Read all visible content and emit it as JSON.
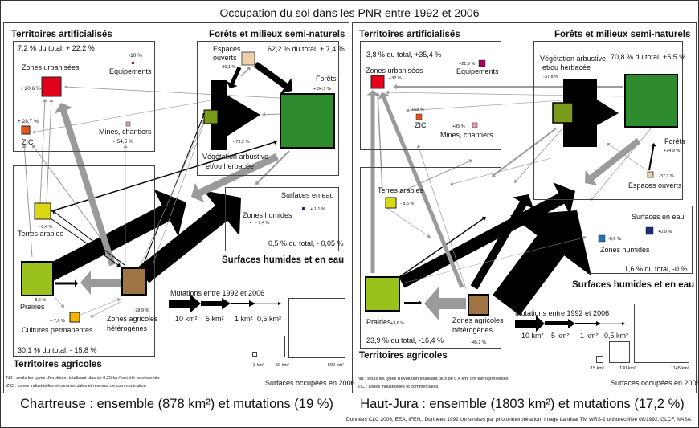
{
  "title": "Occupation du sol dans les PNR entre 1992 et 2006",
  "source": "Données CLC 2006, EEA, IFEN,. Données 1992 construites par photo-interprétation, Image Landsat TM WRS-2 orthorectifiée 08/1992, GLCF, NASA",
  "colors": {
    "zones_urbanisees": "#e2001a",
    "equipements": "#a3005f",
    "zic": "#e4561c",
    "mines": "#e89ac0",
    "forets": "#2e8b2e",
    "vegetation": "#7a9a1c",
    "espaces_ouverts": "#f0cfa8",
    "terres_arables": "#d9d812",
    "prairies": "#9bc11d",
    "cultures": "#f5b400",
    "zones_agricoles": "#9e7444",
    "eau": "#1b2a7a",
    "zones_humides": "#1c75bc",
    "flow_gain": "#000000",
    "flow_loss": "#9a9a9a"
  },
  "chartreuse": {
    "caption": "Chartreuse : ensemble (878 km²) et mutations (19 %)",
    "artif": {
      "title": "Territoires artificialisés",
      "summary": "7,2 % du total, + 22,2 %",
      "urb_label": "Zones urbanisées",
      "urb_pct": "+ 20,6 %",
      "equip_pct": "-10 %",
      "equip_label": "Equipements",
      "zic_pct": "+ 28,7 %",
      "zic_label": "ZIC",
      "mines_label": "Mines, chantiers",
      "mines_pct": "+ 54,5 %"
    },
    "forest": {
      "title": "Forêts et milieux semi-naturels",
      "summary": "62,2 % du total, + 7,4 %",
      "eo_label1": "Espaces",
      "eo_label2": "ouverts",
      "eo_pct": "- 30,1 %",
      "forets_label": "Forêts",
      "forets_pct": "+ 34,1 %",
      "veg_pct": "- 73,2 %",
      "veg_label1": "Végétation arbustive",
      "veg_label2": "et/ou herbacée"
    },
    "water": {
      "title": "Surfaces humides et en eau",
      "eau_label": "Surfaces en eau",
      "eau_pct": "+ 1,1 %",
      "zh_label": "Zones humides",
      "zh_pct": "- 7,4 %",
      "summary": "0,5 % du total, - 0,05 %"
    },
    "agri": {
      "title": "Territoires agricoles",
      "ta_pct": "- 8,4 %",
      "ta_label": "Terres arables",
      "pr_pct": "- 8,6 %",
      "pr_label": "Prairies",
      "cp_pct": "+ 7,6 %",
      "cp_label": "Cultures permanentes",
      "za_pct": "- 28,9 %",
      "za_label1": "Zones agricoles",
      "za_label2": "hétérogènes",
      "summary": "30,1 % du total, - 15,8 %"
    },
    "legend": {
      "title": "Mutations entre 1992 et 2006",
      "arrows": [
        "10 km²",
        "5 km²",
        "1 km²",
        "0,5 km²"
      ],
      "squares": [
        "3 km²",
        "50 km²",
        "500 km²"
      ],
      "squares_title": "Surfaces occupées en 2006"
    },
    "notes": [
      "NB : seuls les types d'évolution totalisant plus de 0,25 km² ont été représentés",
      "ZIC : zones industrielles et commerciales et réseaux de communication"
    ]
  },
  "hautjura": {
    "caption": "Haut-Jura : ensemble (1803 km²) et mutations (17,2 %)",
    "artif": {
      "title": "Territoires artificialisés",
      "summary": "3,8 % du total, +35,4 %",
      "urb_label": "Zones urbanisées",
      "urb_pct": "+32 %",
      "equip_pct": "+21,9 %",
      "equip_label": "Equipements",
      "zic_pct": "+68 %",
      "zic_label": "ZIC",
      "mines_pct": "+85 %",
      "mines_label": "Mines, chantiers"
    },
    "forest": {
      "title": "Forêts et milieux semi-naturels",
      "veg_label1": "Végétation arbustive",
      "veg_label2": "et/ou herbacée",
      "veg_pct": "-37,8 %",
      "summary": "70,8 % du total, +5,5 %",
      "forets_label": "Forêts",
      "forets_pct": "+14,9 %",
      "eo_pct": "-37,3 %",
      "eo_label": "Espaces ouverts"
    },
    "water": {
      "title": "Surfaces humides et en eau",
      "eau_label": "Surfaces en eau",
      "eau_pct": "+0,9 %",
      "zh_pct": "-0,6 %",
      "zh_label": "Zones humides",
      "summary": "1,6 % du total, -0 %"
    },
    "agri": {
      "title": "Territoires agricoles",
      "ta_label": "Terres arables",
      "ta_pct": "- 8,5 %",
      "pr_label": "Prairies",
      "pr_pct": "+3,6 %",
      "za_label1": "Zones agricoles",
      "za_label2": "hétérogènes",
      "za_pct": "-45,2 %",
      "summary": "23,9 % du total, -16,4 %"
    },
    "legend": {
      "title": "Mutations entre 1992 et 2006",
      "arrows": [
        "10 km²",
        "5 km²",
        "1 km²",
        "0,5 km²"
      ],
      "squares": [
        "15 km²",
        "130 km²",
        "1145 km²"
      ],
      "squares_title": "Surfaces occupées en 2006"
    },
    "notes": [
      "NB : seuls les types d'évolution totalisant plus de 0,4 km² ont été représentés",
      "ZIC : zones industrielles et commerciales"
    ]
  }
}
